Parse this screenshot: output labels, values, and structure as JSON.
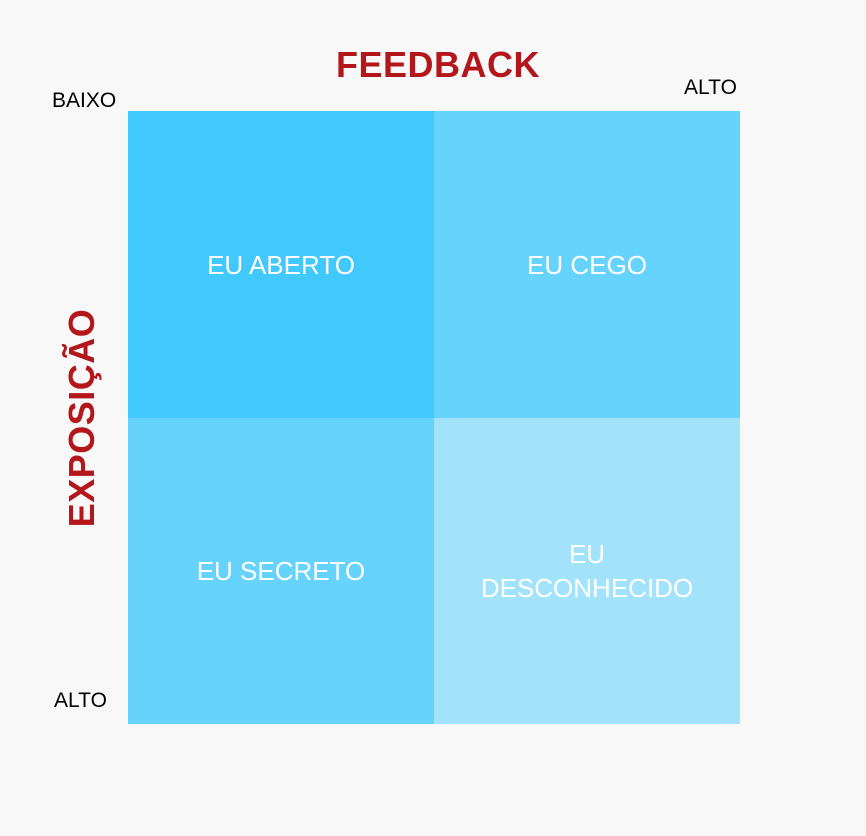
{
  "axes": {
    "x_title": "FEEDBACK",
    "y_title": "EXPOSIÇÃO",
    "top_left_label": "BAIXO",
    "top_right_label": "ALTO",
    "bottom_left_label": "ALTO"
  },
  "quadrants": {
    "top_left": "EU ABERTO",
    "top_right": "EU CEGO",
    "bottom_left": "EU SECRETO",
    "bottom_right": "EU DESCONHECIDO"
  },
  "colors": {
    "axis_title": "#b3161b",
    "top_left": "#41c8fd",
    "top_right": "#66d3fc",
    "bottom_left": "#66d3fc",
    "bottom_right": "#a2e2fb"
  }
}
